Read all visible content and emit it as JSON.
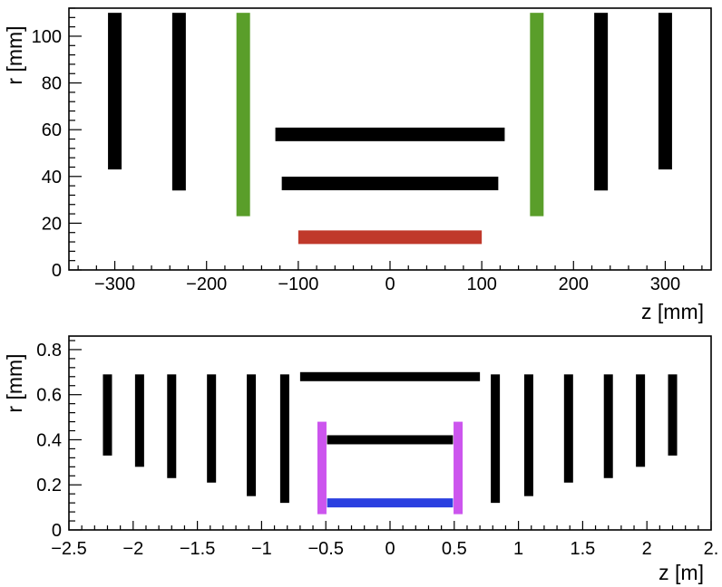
{
  "chart_data": [
    {
      "type": "bar",
      "xlabel": "z [mm]",
      "ylabel": "r [mm]",
      "xlim": [
        -350,
        350
      ],
      "ylim": [
        0,
        112
      ],
      "xticks": [
        -300,
        -200,
        -100,
        0,
        100,
        200,
        300
      ],
      "xtick_labels": [
        "−300",
        "−200",
        "−100",
        "0",
        "100",
        "200",
        "300"
      ],
      "yticks": [
        0,
        20,
        40,
        60,
        80,
        100
      ],
      "ytick_labels": [
        "0",
        "20",
        "40",
        "60",
        "80",
        "100"
      ],
      "grid": false,
      "series": [
        {
          "color": "#000000",
          "segments": [
            {
              "z0": -300,
              "z1": -300,
              "r0": 43,
              "r1": 110
            },
            {
              "z0": -230,
              "z1": -230,
              "r0": 34,
              "r1": 110
            },
            {
              "z0": 230,
              "z1": 230,
              "r0": 34,
              "r1": 110
            },
            {
              "z0": 300,
              "z1": 300,
              "r0": 43,
              "r1": 110
            },
            {
              "z0": -125,
              "z1": 125,
              "r0": 58,
              "r1": 58
            },
            {
              "z0": -118,
              "z1": 118,
              "r0": 37,
              "r1": 37
            }
          ]
        },
        {
          "color": "#5a9e2a",
          "segments": [
            {
              "z0": -160,
              "z1": -160,
              "r0": 23,
              "r1": 110
            },
            {
              "z0": 160,
              "z1": 160,
              "r0": 23,
              "r1": 110
            }
          ]
        },
        {
          "color": "#c0392b",
          "segments": [
            {
              "z0": -100,
              "z1": 100,
              "r0": 14,
              "r1": 14
            }
          ]
        }
      ]
    },
    {
      "type": "bar",
      "xlabel": "z [m]",
      "ylabel": "r [mm]",
      "xlim": [
        -2.5,
        2.5
      ],
      "ylim": [
        0,
        0.86
      ],
      "xticks": [
        -2.5,
        -2,
        -1.5,
        -1,
        -0.5,
        0,
        0.5,
        1,
        1.5,
        2,
        2.5
      ],
      "xtick_labels": [
        "−2.5",
        "−2",
        "−1.5",
        "−1",
        "−0.5",
        "0",
        "0.5",
        "1",
        "1.5",
        "2",
        "2."
      ],
      "yticks": [
        0,
        0.2,
        0.4,
        0.6,
        0.8
      ],
      "ytick_labels": [
        "0",
        "0.2",
        "0.4",
        "0.6",
        "0.8"
      ],
      "grid": false,
      "series": [
        {
          "color": "#000000",
          "segments": [
            {
              "z0": -2.2,
              "z1": -2.2,
              "r0": 0.33,
              "r1": 0.69
            },
            {
              "z0": -1.95,
              "z1": -1.95,
              "r0": 0.28,
              "r1": 0.69
            },
            {
              "z0": -1.7,
              "z1": -1.7,
              "r0": 0.23,
              "r1": 0.69
            },
            {
              "z0": -1.39,
              "z1": -1.39,
              "r0": 0.21,
              "r1": 0.69
            },
            {
              "z0": -1.08,
              "z1": -1.08,
              "r0": 0.15,
              "r1": 0.69
            },
            {
              "z0": -0.82,
              "z1": -0.82,
              "r0": 0.12,
              "r1": 0.69
            },
            {
              "z0": 0.82,
              "z1": 0.82,
              "r0": 0.12,
              "r1": 0.69
            },
            {
              "z0": 1.08,
              "z1": 1.08,
              "r0": 0.15,
              "r1": 0.69
            },
            {
              "z0": 1.39,
              "z1": 1.39,
              "r0": 0.21,
              "r1": 0.69
            },
            {
              "z0": 1.7,
              "z1": 1.7,
              "r0": 0.23,
              "r1": 0.69
            },
            {
              "z0": 1.95,
              "z1": 1.95,
              "r0": 0.28,
              "r1": 0.69
            },
            {
              "z0": 2.2,
              "z1": 2.2,
              "r0": 0.33,
              "r1": 0.69
            },
            {
              "z0": -0.7,
              "z1": 0.7,
              "r0": 0.68,
              "r1": 0.68
            },
            {
              "z0": -0.49,
              "z1": 0.49,
              "r0": 0.4,
              "r1": 0.4
            }
          ]
        },
        {
          "color": "#cc55ee",
          "segments": [
            {
              "z0": -0.53,
              "z1": -0.53,
              "r0": 0.07,
              "r1": 0.48
            },
            {
              "z0": 0.53,
              "z1": 0.53,
              "r0": 0.07,
              "r1": 0.48
            }
          ]
        },
        {
          "color": "#2a3fe0",
          "segments": [
            {
              "z0": -0.49,
              "z1": 0.49,
              "r0": 0.12,
              "r1": 0.12
            }
          ]
        }
      ]
    }
  ]
}
